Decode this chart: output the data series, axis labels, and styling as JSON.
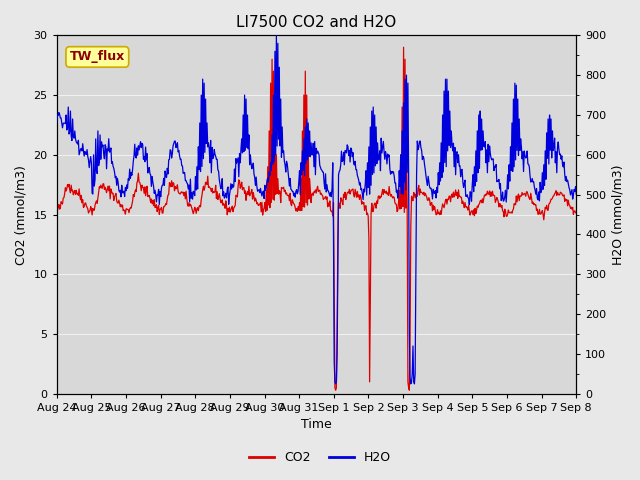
{
  "title": "LI7500 CO2 and H2O",
  "xlabel": "Time",
  "ylabel_left": "CO2 (mmol/m3)",
  "ylabel_right": "H2O (mmol/m3)",
  "ylim_left": [
    0,
    30
  ],
  "ylim_right": [
    0,
    900
  ],
  "yticks_left": [
    0,
    5,
    10,
    15,
    20,
    25,
    30
  ],
  "yticks_right": [
    0,
    100,
    200,
    300,
    400,
    500,
    600,
    700,
    800,
    900
  ],
  "x_tick_labels": [
    "Aug 24",
    "Aug 25",
    "Aug 26",
    "Aug 27",
    "Aug 28",
    "Aug 29",
    "Aug 30",
    "Aug 31",
    "Sep 1",
    "Sep 2",
    "Sep 3",
    "Sep 4",
    "Sep 5",
    "Sep 6",
    "Sep 7",
    "Sep 8"
  ],
  "co2_color": "#dd0000",
  "h2o_color": "#0000dd",
  "fig_bg_color": "#e8e8e8",
  "plot_bg_color": "#d8d8d8",
  "grid_color": "#f0f0f0",
  "annotation_text": "TW_flux",
  "annotation_bg": "#ffff99",
  "annotation_border": "#ccaa00",
  "legend_co2": "CO2",
  "legend_h2o": "H2O",
  "title_fontsize": 11,
  "axis_label_fontsize": 9,
  "tick_fontsize": 8,
  "annotation_fontsize": 9,
  "legend_fontsize": 9
}
